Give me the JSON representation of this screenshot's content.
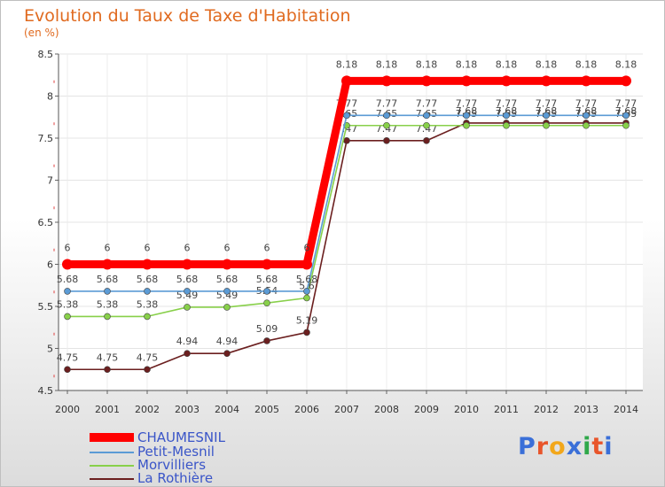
{
  "header": {
    "title": "Evolution du Taux de Taxe d'Habitation",
    "subtitle": "(en %)"
  },
  "chart_data": {
    "type": "line",
    "title": "Evolution du Taux de Taxe d'Habitation",
    "ylabel": "(en %)",
    "xlabel": "",
    "ylim": [
      4.5,
      8.5
    ],
    "yticks": [
      4.5,
      5,
      5.5,
      6,
      6.5,
      7,
      7.5,
      8,
      8.5
    ],
    "ytick_labels": [
      "4.5",
      "5",
      "5.5",
      "6",
      "6.5",
      "7",
      "7.5",
      "8",
      "8.5"
    ],
    "categories": [
      "2000",
      "2001",
      "2002",
      "2003",
      "2004",
      "2005",
      "2006",
      "2007",
      "2008",
      "2009",
      "2010",
      "2011",
      "2012",
      "2013",
      "2014"
    ],
    "series": [
      {
        "name": "La Rothière",
        "color": "#6b1f1f",
        "values": [
          4.75,
          4.75,
          4.75,
          4.94,
          4.94,
          5.09,
          5.19,
          7.47,
          7.47,
          7.47,
          7.68,
          7.68,
          7.68,
          7.68,
          7.68
        ],
        "labels": [
          "4.75",
          "4.75",
          "4.75",
          "4.94",
          "4.94",
          "5.09",
          "5.19",
          "7.47",
          "7.47",
          "7.47",
          "7.68",
          "7.68",
          "7.68",
          "7.68",
          "7.68"
        ],
        "label_pos": "above"
      },
      {
        "name": "Morvilliers",
        "color": "#88d04a",
        "values": [
          5.38,
          5.38,
          5.38,
          5.49,
          5.49,
          5.54,
          5.6,
          7.65,
          7.65,
          7.65,
          7.65,
          7.65,
          7.65,
          7.65,
          7.65
        ],
        "labels": [
          "5.38",
          "5.38",
          "5.38",
          "5.49",
          "5.49",
          "5.54",
          "5.6",
          "7.65",
          "7.65",
          "7.65",
          "7.65",
          "7.65",
          "7.65",
          "7.65",
          "7.65"
        ],
        "label_pos": "above"
      },
      {
        "name": "Petit-Mesnil",
        "color": "#5b9bd5",
        "values": [
          5.68,
          5.68,
          5.68,
          5.68,
          5.68,
          5.68,
          5.68,
          7.77,
          7.77,
          7.77,
          7.77,
          7.77,
          7.77,
          7.77,
          7.77
        ],
        "labels": [
          "5.68",
          "5.68",
          "5.68",
          "5.68",
          "5.68",
          "5.68",
          "5.68",
          "7.77",
          "7.77",
          "7.77",
          "7.77",
          "7.77",
          "7.77",
          "7.77",
          "7.77"
        ],
        "label_pos": "above"
      },
      {
        "name": "CHAUMESNIL",
        "color": "#ff0000",
        "values": [
          6,
          6,
          6,
          6,
          6,
          6,
          6,
          8.18,
          8.18,
          8.18,
          8.18,
          8.18,
          8.18,
          8.18,
          8.18
        ],
        "labels": [
          "6",
          "6",
          "6",
          "6",
          "6",
          "6",
          "6",
          "8.18",
          "8.18",
          "8.18",
          "8.18",
          "8.18",
          "8.18",
          "8.18",
          "8.18"
        ],
        "label_pos": "above"
      }
    ]
  },
  "legend": {
    "items": [
      {
        "label": "CHAUMESNIL",
        "color": "#ff0000"
      },
      {
        "label": "Petit-Mesnil",
        "color": "#5b9bd5"
      },
      {
        "label": "Morvilliers",
        "color": "#88d04a"
      },
      {
        "label": "La Rothière",
        "color": "#6b1f1f"
      }
    ]
  },
  "logo": {
    "text": "Proxiti"
  }
}
